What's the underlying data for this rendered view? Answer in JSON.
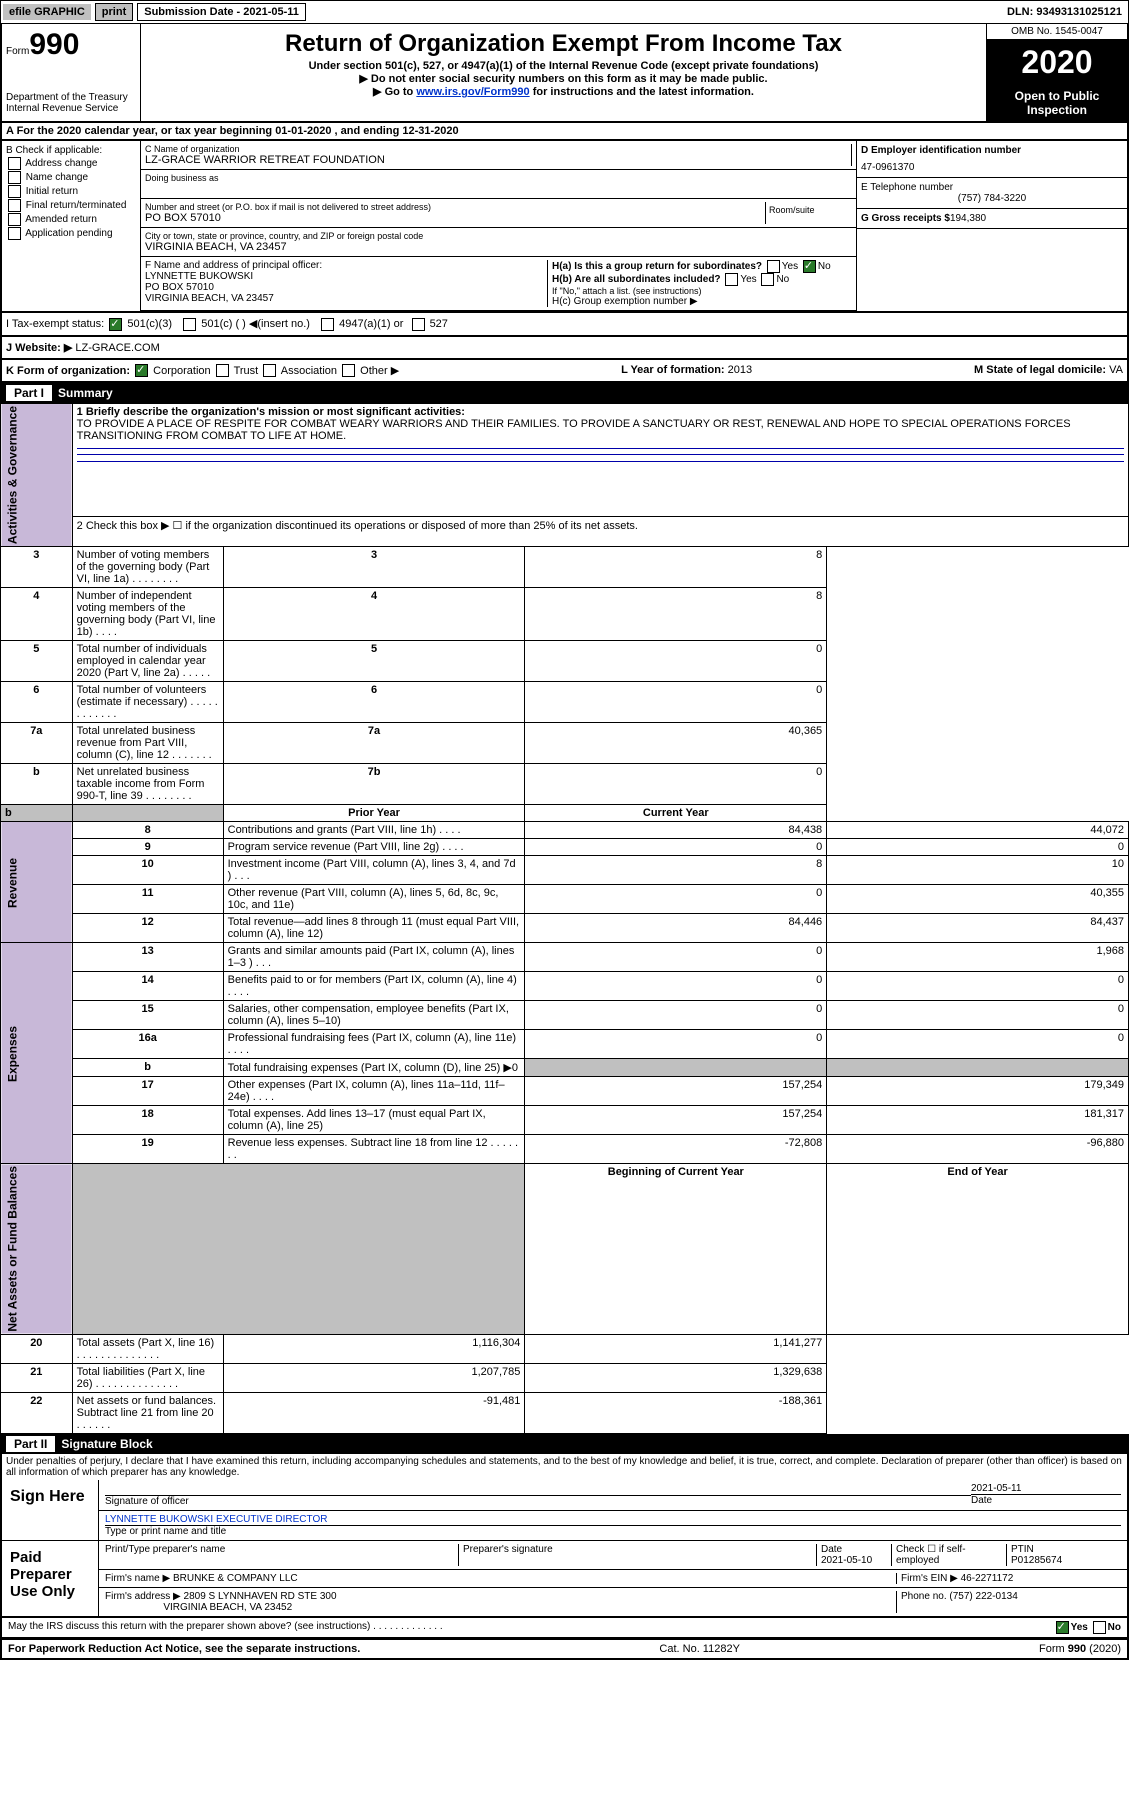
{
  "topbar": {
    "efile": "efile GRAPHIC",
    "print": "print",
    "subdate_label": "Submission Date - 2021-05-11",
    "dln": "DLN: 93493131025121"
  },
  "header": {
    "form_label": "Form",
    "form_num": "990",
    "dept": "Department of the Treasury\nInternal Revenue Service",
    "title": "Return of Organization Exempt From Income Tax",
    "subtitle": "Under section 501(c), 527, or 4947(a)(1) of the Internal Revenue Code (except private foundations)",
    "note1": "▶ Do not enter social security numbers on this form as it may be made public.",
    "note2_pre": "▶ Go to ",
    "note2_link": "www.irs.gov/Form990",
    "note2_post": " for instructions and the latest information.",
    "omb": "OMB No. 1545-0047",
    "year": "2020",
    "inspect": "Open to Public Inspection"
  },
  "line_A": "A   For the 2020 calendar year, or tax year beginning 01-01-2020     , and ending 12-31-2020",
  "box_B": {
    "title": "B Check if applicable:",
    "items": [
      "Address change",
      "Name change",
      "Initial return",
      "Final return/terminated",
      "Amended return",
      "Application pending"
    ]
  },
  "box_C": {
    "name_lbl": "C Name of organization",
    "name": "LZ-GRACE WARRIOR RETREAT FOUNDATION",
    "dba_lbl": "Doing business as",
    "addr_lbl": "Number and street (or P.O. box if mail is not delivered to street address)",
    "room_lbl": "Room/suite",
    "addr": "PO BOX 57010",
    "city_lbl": "City or town, state or province, country, and ZIP or foreign postal code",
    "city": "VIRGINIA BEACH, VA  23457"
  },
  "box_D": {
    "ein_lbl": "D Employer identification number",
    "ein": "47-0961370",
    "tel_lbl": "E Telephone number",
    "tel": "(757) 784-3220",
    "gross_lbl": "G Gross receipts $",
    "gross": "194,380"
  },
  "box_F": {
    "lbl": "F  Name and address of principal officer:",
    "name": "LYNNETTE BUKOWSKI",
    "addr1": "PO BOX 57010",
    "addr2": "VIRGINIA BEACH, VA  23457"
  },
  "box_H": {
    "a_lbl": "H(a)  Is this a group return for subordinates?",
    "b_lbl": "H(b)  Are all subordinates included?",
    "b_note": "If \"No,\" attach a list. (see instructions)",
    "c_lbl": "H(c)  Group exemption number ▶",
    "yes": "Yes",
    "no": "No"
  },
  "line_I": {
    "lbl": "I   Tax-exempt status:",
    "c3": "501(c)(3)",
    "c": "501(c) ( )  ◀(insert no.)",
    "a": "4947(a)(1) or",
    "s527": "527"
  },
  "line_J": {
    "lbl": "J   Website: ▶",
    "val": "LZ-GRACE.COM"
  },
  "line_K": {
    "lbl": "K Form of organization:",
    "corp": "Corporation",
    "trust": "Trust",
    "assoc": "Association",
    "other": "Other ▶"
  },
  "line_L": {
    "lbl": "L Year of formation:",
    "val": "2013"
  },
  "line_M": {
    "lbl": "M State of legal domicile:",
    "val": "VA"
  },
  "part1": {
    "title": "Part I",
    "name": "Summary",
    "side1": "Activities & Governance",
    "side2": "Revenue",
    "side3": "Expenses",
    "side4": "Net Assets or Fund Balances",
    "l1_lbl": "1  Briefly describe the organization's mission or most significant activities:",
    "l1_val": "TO PROVIDE A PLACE OF RESPITE FOR COMBAT WEARY WARRIORS AND THEIR FAMILIES. TO PROVIDE A SANCTUARY OR REST, RENEWAL AND HOPE TO SPECIAL OPERATIONS FORCES TRANSITIONING FROM COMBAT TO LIFE AT HOME.",
    "l2": "2   Check this box ▶ ☐  if the organization discontinued its operations or disposed of more than 25% of its net assets.",
    "rows_gov": [
      {
        "n": "3",
        "t": "Number of voting members of the governing body (Part VI, line 1a)   .    .    .    .    .    .    .    .",
        "k": "3",
        "v": "8"
      },
      {
        "n": "4",
        "t": "Number of independent voting members of the governing body (Part VI, line 1b)   .    .    .    .",
        "k": "4",
        "v": "8"
      },
      {
        "n": "5",
        "t": "Total number of individuals employed in calendar year 2020 (Part V, line 2a)   .    .    .    .    .",
        "k": "5",
        "v": "0"
      },
      {
        "n": "6",
        "t": "Total number of volunteers (estimate if necessary)    .    .    .    .    .    .    .    .    .    .    .    .",
        "k": "6",
        "v": "0"
      },
      {
        "n": "7a",
        "t": "Total unrelated business revenue from Part VIII, column (C), line 12   .    .    .    .    .    .    .",
        "k": "7a",
        "v": "40,365"
      },
      {
        "n": "b",
        "t": "Net unrelated business taxable income from Form 990-T, line 39    .    .    .    .    .    .    .    .",
        "k": "7b",
        "v": "0"
      }
    ],
    "col_prior": "Prior Year",
    "col_curr": "Current Year",
    "rows_rev": [
      {
        "n": "8",
        "t": "Contributions and grants (Part VIII, line 1h)   .    .    .    .",
        "p": "84,438",
        "c": "44,072"
      },
      {
        "n": "9",
        "t": "Program service revenue (Part VIII, line 2g)   .    .    .    .",
        "p": "0",
        "c": "0"
      },
      {
        "n": "10",
        "t": "Investment income (Part VIII, column (A), lines 3, 4, and 7d )    .    .    .",
        "p": "8",
        "c": "10"
      },
      {
        "n": "11",
        "t": "Other revenue (Part VIII, column (A), lines 5, 6d, 8c, 9c, 10c, and 11e)",
        "p": "0",
        "c": "40,355"
      },
      {
        "n": "12",
        "t": "Total revenue—add lines 8 through 11 (must equal Part VIII, column (A), line 12)",
        "p": "84,446",
        "c": "84,437"
      }
    ],
    "rows_exp": [
      {
        "n": "13",
        "t": "Grants and similar amounts paid (Part IX, column (A), lines 1–3 )   .    .    .",
        "p": "0",
        "c": "1,968"
      },
      {
        "n": "14",
        "t": "Benefits paid to or for members (Part IX, column (A), line 4)   .    .    .    .",
        "p": "0",
        "c": "0"
      },
      {
        "n": "15",
        "t": "Salaries, other compensation, employee benefits (Part IX, column (A), lines 5–10)",
        "p": "0",
        "c": "0"
      },
      {
        "n": "16a",
        "t": "Professional fundraising fees (Part IX, column (A), line 11e)   .    .    .    .",
        "p": "0",
        "c": "0"
      },
      {
        "n": "b",
        "t": "Total fundraising expenses (Part IX, column (D), line 25) ▶0",
        "p": "",
        "c": "",
        "grey": true
      },
      {
        "n": "17",
        "t": "Other expenses (Part IX, column (A), lines 11a–11d, 11f–24e)   .    .    .    .",
        "p": "157,254",
        "c": "179,349"
      },
      {
        "n": "18",
        "t": "Total expenses. Add lines 13–17 (must equal Part IX, column (A), line 25)",
        "p": "157,254",
        "c": "181,317"
      },
      {
        "n": "19",
        "t": "Revenue less expenses. Subtract line 18 from line 12 .    .    .    .    .    .    .",
        "p": "-72,808",
        "c": "-96,880"
      }
    ],
    "col_boy": "Beginning of Current Year",
    "col_eoy": "End of Year",
    "rows_net": [
      {
        "n": "20",
        "t": "Total assets (Part X, line 16)   .    .    .    .    .    .    .    .    .    .    .    .    .    .",
        "p": "1,116,304",
        "c": "1,141,277"
      },
      {
        "n": "21",
        "t": "Total liabilities (Part X, line 26)  .    .    .    .    .    .    .    .    .    .    .    .    .    .",
        "p": "1,207,785",
        "c": "1,329,638"
      },
      {
        "n": "22",
        "t": "Net assets or fund balances. Subtract line 21 from line 20   .    .    .    .    .    .",
        "p": "-91,481",
        "c": "-188,361"
      }
    ]
  },
  "part2": {
    "title": "Part II",
    "name": "Signature Block",
    "perjury": "Under penalties of perjury, I declare that I have examined this return, including accompanying schedules and statements, and to the best of my knowledge and belief, it is true, correct, and complete. Declaration of preparer (other than officer) is based on all information of which preparer has any knowledge.",
    "sign_here": "Sign Here",
    "sig_officer_lbl": "Signature of officer",
    "date_lbl": "Date",
    "date": "2021-05-11",
    "officer_name": "LYNNETTE BUKOWSKI  EXECUTIVE DIRECTOR",
    "officer_name_lbl": "Type or print name and title",
    "paid": "Paid Preparer Use Only",
    "prep_name_lbl": "Print/Type preparer's name",
    "prep_sig_lbl": "Preparer's signature",
    "prep_date_lbl": "Date",
    "prep_date": "2021-05-10",
    "self_lbl": "Check ☐ if self-employed",
    "ptin_lbl": "PTIN",
    "ptin": "P01285674",
    "firm_name_lbl": "Firm's name      ▶",
    "firm_name": "BRUNKE & COMPANY LLC",
    "firm_ein_lbl": "Firm's EIN ▶",
    "firm_ein": "46-2271172",
    "firm_addr_lbl": "Firm's address  ▶",
    "firm_addr1": "2809 S LYNNHAVEN RD STE 300",
    "firm_addr2": "VIRGINIA BEACH, VA  23452",
    "phone_lbl": "Phone no.",
    "phone": "(757) 222-0134",
    "discuss": "May the IRS discuss this return with the preparer shown above? (see instructions)   .    .    .    .    .    .    .    .    .    .    .    .    .",
    "yes": "Yes",
    "no": "No"
  },
  "footer": {
    "pra": "For Paperwork Reduction Act Notice, see the separate instructions.",
    "cat": "Cat. No. 11282Y",
    "form": "Form 990 (2020)"
  },
  "colors": {
    "purple": "#c8b8d8",
    "link": "#0033cc",
    "grey": "#c0c0c0"
  }
}
